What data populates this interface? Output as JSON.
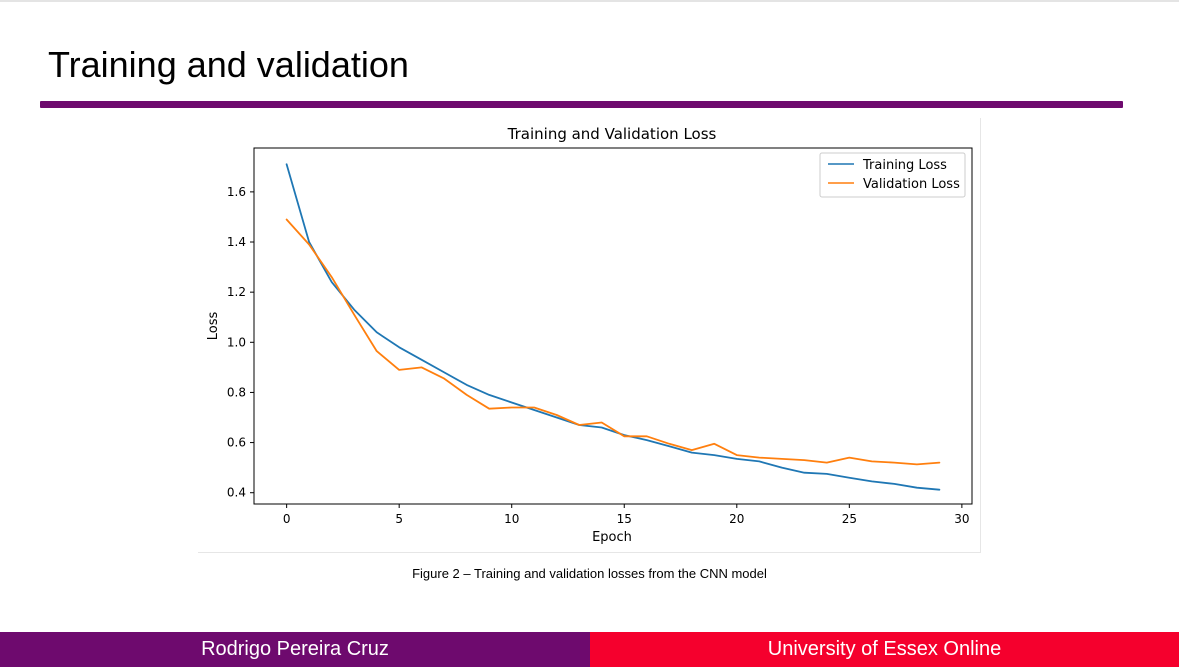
{
  "slide": {
    "title": "Training and validation",
    "caption": "Figure 2 – Training and validation losses from the CNN model"
  },
  "footer": {
    "author": "Rodrigo Pereira Cruz",
    "institution": "University of Essex Online"
  },
  "colors": {
    "brand_purple": "#6e0a6e",
    "brand_red": "#f5002d",
    "training": "#1f77b4",
    "validation": "#ff7f0e"
  },
  "chart_data": {
    "type": "line",
    "title": "Training and Validation Loss",
    "xlabel": "Epoch",
    "ylabel": "Loss",
    "xlim": [
      -1.45,
      30.45
    ],
    "ylim": [
      0.355,
      1.775
    ],
    "xticks": [
      0,
      5,
      10,
      15,
      20,
      25,
      30
    ],
    "yticks": [
      0.4,
      0.6,
      0.8,
      1.0,
      1.2,
      1.4,
      1.6
    ],
    "grid": false,
    "legend_position": "upper right",
    "x": [
      0,
      1,
      2,
      3,
      4,
      5,
      6,
      7,
      8,
      9,
      10,
      11,
      12,
      13,
      14,
      15,
      16,
      17,
      18,
      19,
      20,
      21,
      22,
      23,
      24,
      25,
      26,
      27,
      28,
      29
    ],
    "series": [
      {
        "name": "Training Loss",
        "color": "#1f77b4",
        "values": [
          1.71,
          1.4,
          1.24,
          1.13,
          1.04,
          0.98,
          0.93,
          0.88,
          0.83,
          0.79,
          0.76,
          0.73,
          0.7,
          0.67,
          0.66,
          0.63,
          0.61,
          0.585,
          0.56,
          0.55,
          0.535,
          0.525,
          0.5,
          0.48,
          0.475,
          0.46,
          0.445,
          0.435,
          0.42,
          0.412
        ]
      },
      {
        "name": "Validation Loss",
        "color": "#ff7f0e",
        "values": [
          1.49,
          1.39,
          1.26,
          1.11,
          0.965,
          0.89,
          0.9,
          0.855,
          0.79,
          0.735,
          0.74,
          0.74,
          0.71,
          0.67,
          0.68,
          0.625,
          0.625,
          0.595,
          0.57,
          0.595,
          0.55,
          0.54,
          0.535,
          0.53,
          0.52,
          0.54,
          0.525,
          0.52,
          0.513,
          0.52
        ]
      }
    ]
  }
}
